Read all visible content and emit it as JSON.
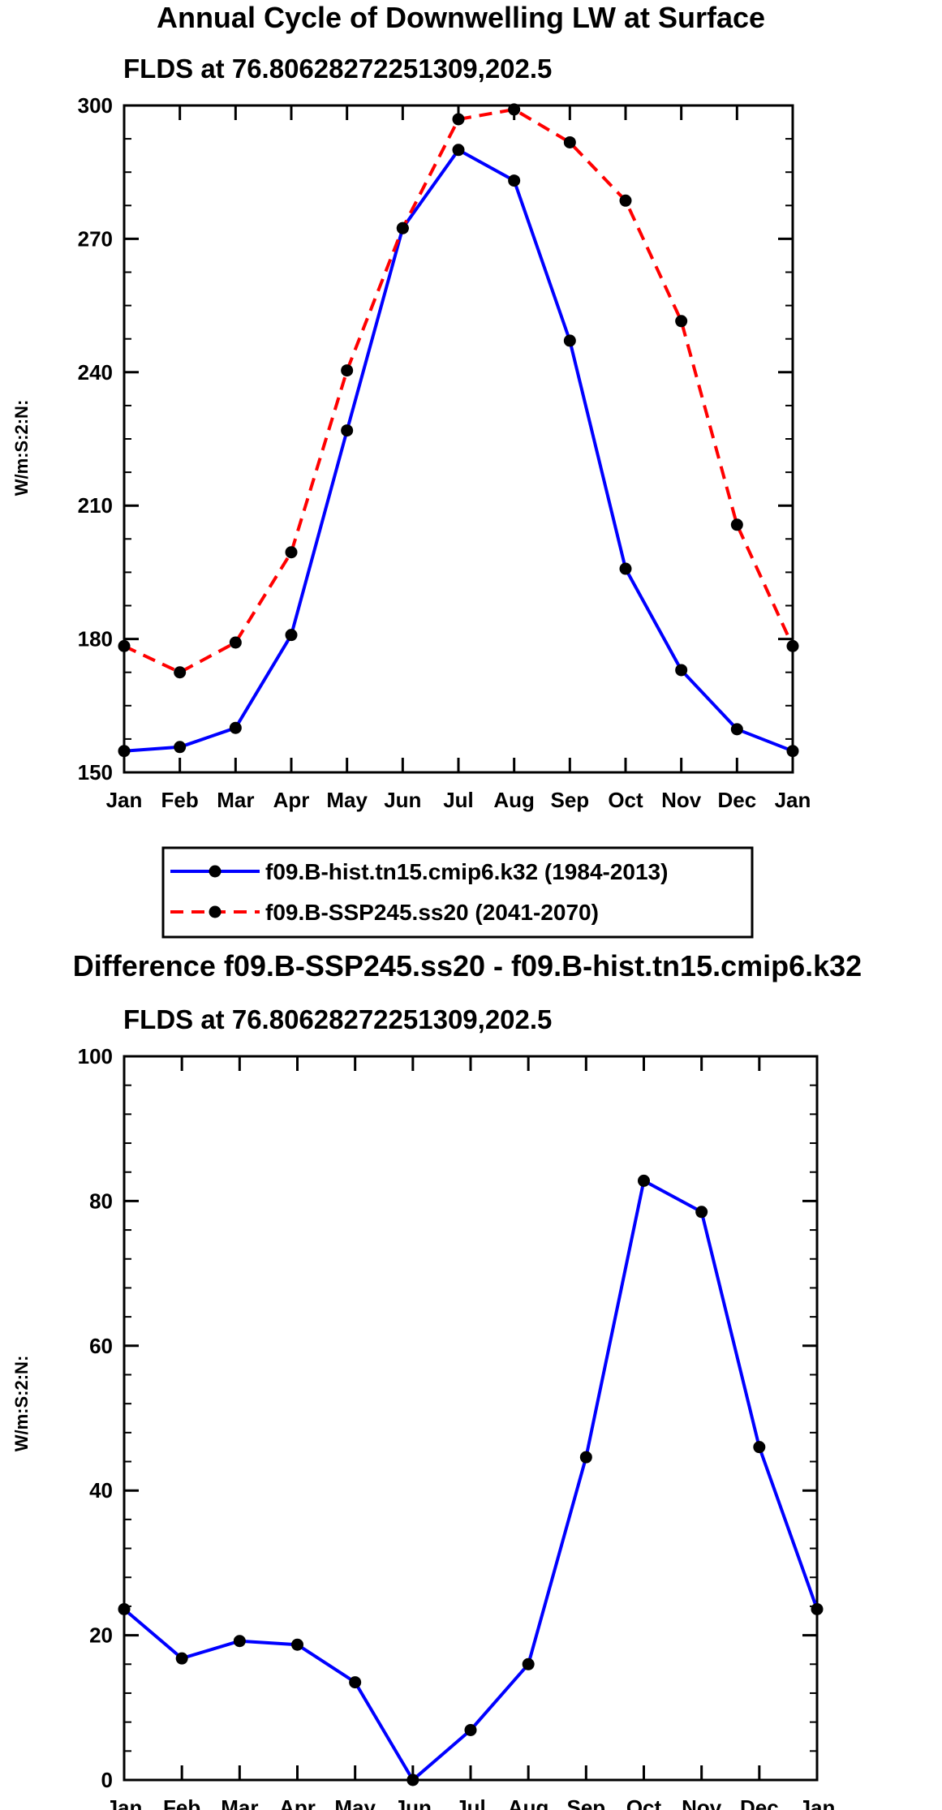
{
  "chart_data": [
    {
      "type": "line",
      "title": "Annual Cycle of Downwelling LW at Surface",
      "subtitle": "FLDS at 76.80628272251309,202.5",
      "ylabel": "W/m:S:2:N:",
      "xlabel": "",
      "categories": [
        "Jan",
        "Feb",
        "Mar",
        "Apr",
        "May",
        "Jun",
        "Jul",
        "Aug",
        "Sep",
        "Oct",
        "Nov",
        "Dec",
        "Jan"
      ],
      "ylim": [
        150,
        300
      ],
      "yticks": [
        150,
        180,
        210,
        240,
        270,
        300
      ],
      "legend_position": "bottom",
      "series": [
        {
          "name": "f09.B-hist.tn15.cmip6.k32 (1984-2013)",
          "color": "#0000ff",
          "dash": "solid",
          "values": [
            154.8,
            155.7,
            160.0,
            180.9,
            226.9,
            272.4,
            290.0,
            283.1,
            247.1,
            195.8,
            173.0,
            159.7,
            154.8
          ]
        },
        {
          "name": "f09.B-SSP245.ss20 (2041-2070)",
          "color": "#ff0000",
          "dash": "dashed",
          "values": [
            178.4,
            172.5,
            179.2,
            199.5,
            240.4,
            272.4,
            296.9,
            299.1,
            291.7,
            278.6,
            251.5,
            205.7,
            178.4
          ]
        }
      ]
    },
    {
      "type": "line",
      "title": "Difference f09.B-SSP245.ss20 - f09.B-hist.tn15.cmip6.k32",
      "subtitle": "FLDS at 76.80628272251309,202.5",
      "ylabel": "W/m:S:2:N:",
      "xlabel": "",
      "categories": [
        "Jan",
        "Feb",
        "Mar",
        "Apr",
        "May",
        "Jun",
        "Jul",
        "Aug",
        "Sep",
        "Oct",
        "Nov",
        "Dec",
        "Jan"
      ],
      "ylim": [
        0,
        100
      ],
      "yticks": [
        0,
        20,
        40,
        60,
        80,
        100
      ],
      "series": [
        {
          "name": "Difference",
          "color": "#0000ff",
          "dash": "solid",
          "values": [
            23.6,
            16.8,
            19.2,
            18.7,
            13.5,
            0.0,
            6.9,
            16.0,
            44.6,
            82.8,
            78.5,
            46.0,
            23.6
          ]
        }
      ]
    }
  ]
}
